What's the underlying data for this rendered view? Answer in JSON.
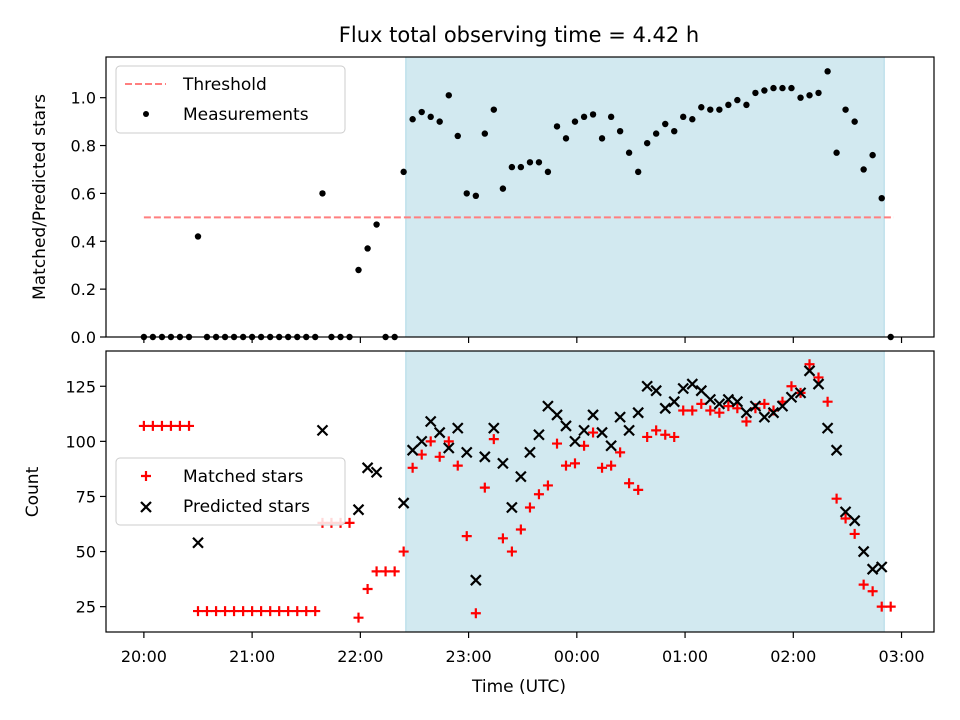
{
  "figure": {
    "title": "Flux total observing time = 4.42 h",
    "xlabel": "Time (UTC)",
    "x_ticks": [
      "20:00",
      "21:00",
      "22:00",
      "23:00",
      "00:00",
      "01:00",
      "02:00",
      "03:00"
    ]
  },
  "colors": {
    "observing_span": "#d2e9f0",
    "threshold": "#ff7f7f",
    "measurements": "#000000",
    "matched": "#ff0000",
    "predicted": "#000000"
  },
  "chart_data": [
    {
      "type": "scatter",
      "ylabel": "Matched/Predicted stars",
      "xlim": [
        -0.35,
        7.3
      ],
      "ylim": [
        0,
        1.17
      ],
      "x_unit": "hours after 20:00 UTC",
      "y_ticks": [
        "0.0",
        "0.2",
        "0.4",
        "0.6",
        "0.8",
        "1.0"
      ],
      "legend_position": "top-left",
      "observing_span": [
        2.42,
        6.84
      ],
      "threshold": {
        "name": "Threshold",
        "y": 0.5,
        "x_range": [
          0,
          6.93
        ]
      },
      "series": [
        {
          "name": "Measurements",
          "points": [
            [
              0,
              0
            ],
            [
              0.083,
              0
            ],
            [
              0.167,
              0
            ],
            [
              0.25,
              0
            ],
            [
              0.333,
              0
            ],
            [
              0.417,
              0
            ],
            [
              0.5,
              0.42
            ],
            [
              0.583,
              0
            ],
            [
              0.667,
              0
            ],
            [
              0.75,
              0
            ],
            [
              0.833,
              0
            ],
            [
              0.917,
              0
            ],
            [
              1.0,
              0
            ],
            [
              1.083,
              0
            ],
            [
              1.167,
              0
            ],
            [
              1.25,
              0
            ],
            [
              1.333,
              0
            ],
            [
              1.417,
              0
            ],
            [
              1.5,
              0
            ],
            [
              1.583,
              0
            ],
            [
              1.65,
              0.6
            ],
            [
              1.733,
              0
            ],
            [
              1.817,
              0
            ],
            [
              1.9,
              0
            ],
            [
              1.983,
              0.28
            ],
            [
              2.067,
              0.37
            ],
            [
              2.15,
              0.47
            ],
            [
              2.233,
              0
            ],
            [
              2.317,
              0
            ],
            [
              2.4,
              0.69
            ],
            [
              2.483,
              0.91
            ],
            [
              2.567,
              0.94
            ],
            [
              2.65,
              0.92
            ],
            [
              2.733,
              0.9
            ],
            [
              2.817,
              1.01
            ],
            [
              2.9,
              0.84
            ],
            [
              2.983,
              0.6
            ],
            [
              3.067,
              0.59
            ],
            [
              3.15,
              0.85
            ],
            [
              3.233,
              0.95
            ],
            [
              3.317,
              0.62
            ],
            [
              3.4,
              0.71
            ],
            [
              3.483,
              0.71
            ],
            [
              3.567,
              0.73
            ],
            [
              3.65,
              0.73
            ],
            [
              3.733,
              0.69
            ],
            [
              3.817,
              0.88
            ],
            [
              3.9,
              0.83
            ],
            [
              3.983,
              0.9
            ],
            [
              4.067,
              0.92
            ],
            [
              4.15,
              0.93
            ],
            [
              4.233,
              0.83
            ],
            [
              4.317,
              0.92
            ],
            [
              4.4,
              0.86
            ],
            [
              4.483,
              0.77
            ],
            [
              4.567,
              0.69
            ],
            [
              4.65,
              0.81
            ],
            [
              4.733,
              0.85
            ],
            [
              4.817,
              0.89
            ],
            [
              4.9,
              0.86
            ],
            [
              4.983,
              0.92
            ],
            [
              5.067,
              0.91
            ],
            [
              5.15,
              0.96
            ],
            [
              5.233,
              0.95
            ],
            [
              5.317,
              0.95
            ],
            [
              5.4,
              0.97
            ],
            [
              5.483,
              0.99
            ],
            [
              5.567,
              0.97
            ],
            [
              5.65,
              1.02
            ],
            [
              5.733,
              1.03
            ],
            [
              5.817,
              1.04
            ],
            [
              5.9,
              1.04
            ],
            [
              5.983,
              1.04
            ],
            [
              6.067,
              1.0
            ],
            [
              6.15,
              1.01
            ],
            [
              6.233,
              1.02
            ],
            [
              6.317,
              1.11
            ],
            [
              6.4,
              0.77
            ],
            [
              6.483,
              0.95
            ],
            [
              6.567,
              0.9
            ],
            [
              6.65,
              0.7
            ],
            [
              6.733,
              0.76
            ],
            [
              6.817,
              0.58
            ],
            [
              6.9,
              0
            ]
          ]
        }
      ]
    },
    {
      "type": "scatter",
      "ylabel": "Count",
      "xlim": [
        -0.35,
        7.3
      ],
      "ylim": [
        13.5,
        141
      ],
      "x_unit": "hours after 20:00 UTC",
      "y_ticks": [
        "25",
        "50",
        "75",
        "100",
        "125"
      ],
      "legend_position": "center-left",
      "observing_span": [
        2.42,
        6.84
      ],
      "series": [
        {
          "name": "Matched stars",
          "points": [
            [
              0,
              107
            ],
            [
              0.083,
              107
            ],
            [
              0.167,
              107
            ],
            [
              0.25,
              107
            ],
            [
              0.333,
              107
            ],
            [
              0.417,
              107
            ],
            [
              0.5,
              23
            ],
            [
              0.583,
              23
            ],
            [
              0.667,
              23
            ],
            [
              0.75,
              23
            ],
            [
              0.833,
              23
            ],
            [
              0.917,
              23
            ],
            [
              1.0,
              23
            ],
            [
              1.083,
              23
            ],
            [
              1.167,
              23
            ],
            [
              1.25,
              23
            ],
            [
              1.333,
              23
            ],
            [
              1.417,
              23
            ],
            [
              1.5,
              23
            ],
            [
              1.583,
              23
            ],
            [
              1.65,
              63
            ],
            [
              1.733,
              63
            ],
            [
              1.817,
              63
            ],
            [
              1.9,
              63
            ],
            [
              1.983,
              20
            ],
            [
              2.067,
              33
            ],
            [
              2.15,
              41
            ],
            [
              2.233,
              41
            ],
            [
              2.317,
              41
            ],
            [
              2.4,
              50
            ],
            [
              2.483,
              88
            ],
            [
              2.567,
              94
            ],
            [
              2.65,
              100
            ],
            [
              2.733,
              93
            ],
            [
              2.817,
              100
            ],
            [
              2.9,
              89
            ],
            [
              2.983,
              57
            ],
            [
              3.067,
              22
            ],
            [
              3.15,
              79
            ],
            [
              3.233,
              101
            ],
            [
              3.317,
              56
            ],
            [
              3.4,
              50
            ],
            [
              3.483,
              60
            ],
            [
              3.567,
              70
            ],
            [
              3.65,
              76
            ],
            [
              3.733,
              80
            ],
            [
              3.817,
              99
            ],
            [
              3.9,
              89
            ],
            [
              3.983,
              90
            ],
            [
              4.067,
              98
            ],
            [
              4.15,
              104
            ],
            [
              4.233,
              88
            ],
            [
              4.317,
              89
            ],
            [
              4.4,
              95
            ],
            [
              4.483,
              81
            ],
            [
              4.567,
              78
            ],
            [
              4.65,
              102
            ],
            [
              4.733,
              105
            ],
            [
              4.817,
              103
            ],
            [
              4.9,
              102
            ],
            [
              4.983,
              114
            ],
            [
              5.067,
              114
            ],
            [
              5.15,
              117
            ],
            [
              5.233,
              114
            ],
            [
              5.317,
              113
            ],
            [
              5.4,
              116
            ],
            [
              5.483,
              115
            ],
            [
              5.567,
              109
            ],
            [
              5.65,
              115
            ],
            [
              5.733,
              117
            ],
            [
              5.817,
              114
            ],
            [
              5.9,
              118
            ],
            [
              5.983,
              125
            ],
            [
              6.067,
              122
            ],
            [
              6.15,
              135
            ],
            [
              6.233,
              129
            ],
            [
              6.317,
              118
            ],
            [
              6.4,
              74
            ],
            [
              6.483,
              65
            ],
            [
              6.567,
              58
            ],
            [
              6.65,
              35
            ],
            [
              6.733,
              32
            ],
            [
              6.817,
              25
            ],
            [
              6.9,
              25
            ]
          ]
        },
        {
          "name": "Predicted stars",
          "points": [
            [
              0.5,
              54
            ],
            [
              1.65,
              105
            ],
            [
              1.983,
              69
            ],
            [
              2.067,
              88
            ],
            [
              2.15,
              86
            ],
            [
              2.4,
              72
            ],
            [
              2.483,
              96
            ],
            [
              2.567,
              100
            ],
            [
              2.65,
              109
            ],
            [
              2.733,
              104
            ],
            [
              2.817,
              97
            ],
            [
              2.9,
              106
            ],
            [
              2.983,
              95
            ],
            [
              3.067,
              37
            ],
            [
              3.15,
              93
            ],
            [
              3.233,
              106
            ],
            [
              3.317,
              90
            ],
            [
              3.4,
              70
            ],
            [
              3.483,
              84
            ],
            [
              3.567,
              95
            ],
            [
              3.65,
              103
            ],
            [
              3.733,
              116
            ],
            [
              3.817,
              112
            ],
            [
              3.9,
              107
            ],
            [
              3.983,
              100
            ],
            [
              4.067,
              105
            ],
            [
              4.15,
              112
            ],
            [
              4.233,
              104
            ],
            [
              4.317,
              98
            ],
            [
              4.4,
              111
            ],
            [
              4.483,
              105
            ],
            [
              4.567,
              113
            ],
            [
              4.65,
              125
            ],
            [
              4.733,
              123
            ],
            [
              4.817,
              115
            ],
            [
              4.9,
              118
            ],
            [
              4.983,
              124
            ],
            [
              5.067,
              126
            ],
            [
              5.15,
              123
            ],
            [
              5.233,
              119
            ],
            [
              5.317,
              117
            ],
            [
              5.4,
              119
            ],
            [
              5.483,
              118
            ],
            [
              5.567,
              113
            ],
            [
              5.65,
              116
            ],
            [
              5.733,
              111
            ],
            [
              5.817,
              113
            ],
            [
              5.9,
              116
            ],
            [
              5.983,
              120
            ],
            [
              6.067,
              122
            ],
            [
              6.15,
              132
            ],
            [
              6.233,
              126
            ],
            [
              6.317,
              106
            ],
            [
              6.4,
              96
            ],
            [
              6.483,
              68
            ],
            [
              6.567,
              64
            ],
            [
              6.65,
              50
            ],
            [
              6.733,
              42
            ],
            [
              6.817,
              43
            ]
          ]
        }
      ]
    }
  ]
}
